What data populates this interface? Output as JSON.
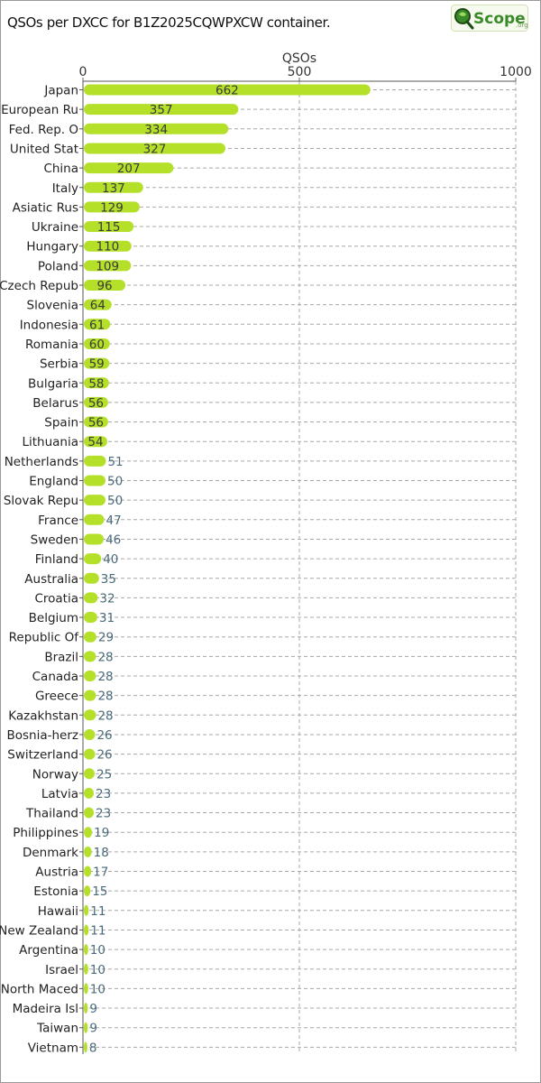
{
  "title": "QSOs per DXCC for B1Z2025CQWPXCW container.",
  "logo": {
    "text": "Scope",
    "suffix": ".org"
  },
  "colors": {
    "bar": "#b5e02a",
    "label_inside": "#3a3a3a",
    "label_outside": "#4a6a7a",
    "grid": "#a8a8a8"
  },
  "chart_data": {
    "type": "bar",
    "orientation": "horizontal",
    "xlabel": "QSOs",
    "xlim": [
      0,
      1000
    ],
    "xticks": [
      0,
      500,
      1000
    ],
    "grid": true,
    "categories": [
      "Japan",
      "European Ru",
      "Fed. Rep. O",
      "United Stat",
      "China",
      "Italy",
      "Asiatic Rus",
      "Ukraine",
      "Hungary",
      "Poland",
      "Czech Repub",
      "Slovenia",
      "Indonesia",
      "Romania",
      "Serbia",
      "Bulgaria",
      "Belarus",
      "Spain",
      "Lithuania",
      "Netherlands",
      "England",
      "Slovak Repu",
      "France",
      "Sweden",
      "Finland",
      "Australia",
      "Croatia",
      "Belgium",
      "Republic Of",
      "Brazil",
      "Canada",
      "Greece",
      "Kazakhstan",
      "Bosnia-herz",
      "Switzerland",
      "Norway",
      "Latvia",
      "Thailand",
      "Philippines",
      "Denmark",
      "Austria",
      "Estonia",
      "Hawaii",
      "New Zealand",
      "Argentina",
      "Israel",
      "North Maced",
      "Madeira Isl",
      "Taiwan",
      "Vietnam"
    ],
    "values": [
      662,
      357,
      334,
      327,
      207,
      137,
      129,
      115,
      110,
      109,
      96,
      64,
      61,
      60,
      59,
      58,
      56,
      56,
      54,
      51,
      50,
      50,
      47,
      46,
      40,
      35,
      32,
      31,
      29,
      28,
      28,
      28,
      28,
      26,
      26,
      25,
      23,
      23,
      19,
      18,
      17,
      15,
      11,
      11,
      10,
      10,
      10,
      9,
      9,
      8
    ]
  }
}
